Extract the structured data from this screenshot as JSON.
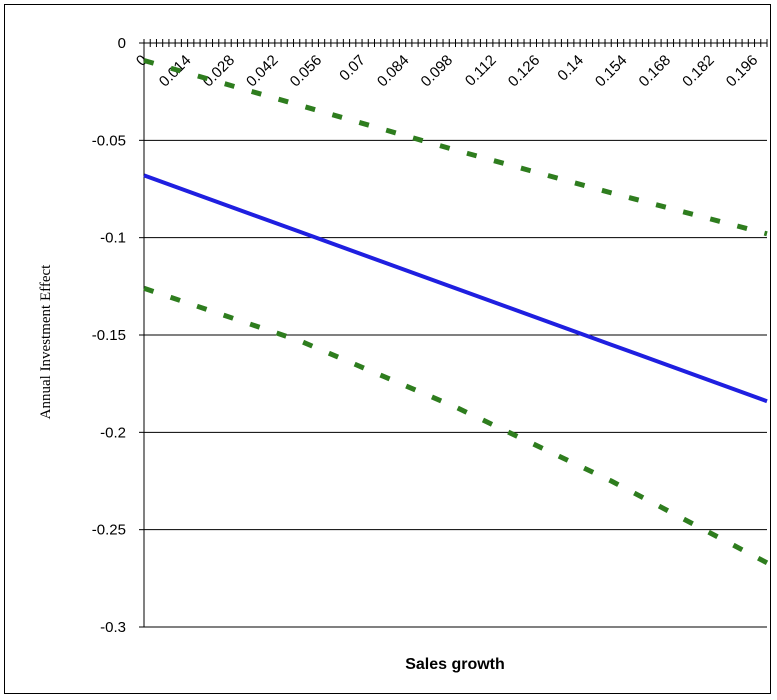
{
  "chart_data": {
    "type": "line",
    "title": "",
    "xlabel": "Sales growth",
    "ylabel": "Annual Investment Effect",
    "ylim": [
      -0.3,
      0
    ],
    "yticks": [
      "0",
      "-0.05",
      "-0.1",
      "-0.15",
      "-0.2",
      "-0.25",
      "-0.3"
    ],
    "xlim": [
      0,
      0.2
    ],
    "xticks": [
      "0",
      "0.014",
      "0.028",
      "0.042",
      "0.056",
      "0.07",
      "0.084",
      "0.098",
      "0.112",
      "0.126",
      "0.14",
      "0.154",
      "0.168",
      "0.182",
      "0.196"
    ],
    "grid": "horizontal",
    "legend": "none",
    "series": [
      {
        "style": "solid",
        "color": "#1f1fe0",
        "x": [
          0,
          0.05,
          0.1,
          0.15,
          0.2
        ],
        "y": [
          -0.068,
          -0.097,
          -0.126,
          -0.155,
          -0.184
        ]
      },
      {
        "style": "dashed",
        "color": "#2e7d1e",
        "x": [
          0,
          0.05,
          0.1,
          0.15,
          0.2
        ],
        "y": [
          -0.009,
          -0.032,
          -0.055,
          -0.077,
          -0.098
        ]
      },
      {
        "style": "dashed",
        "color": "#2e7d1e",
        "x": [
          0,
          0.05,
          0.1,
          0.15,
          0.2
        ],
        "y": [
          -0.126,
          -0.153,
          -0.187,
          -0.225,
          -0.267
        ]
      }
    ]
  }
}
